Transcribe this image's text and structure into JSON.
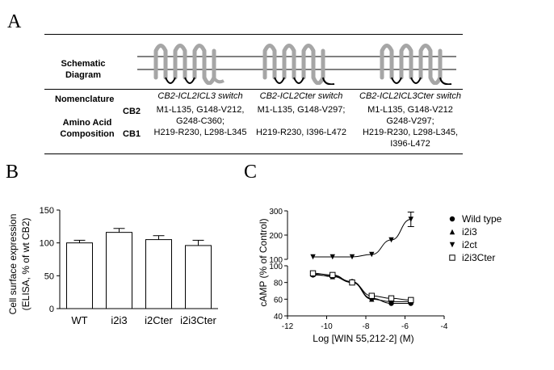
{
  "panels": {
    "a": "A",
    "b": "B",
    "c": "C"
  },
  "table": {
    "row_schematic": "Schematic\nDiagram",
    "row_nomenclature": "Nomenclature",
    "row_amino": "Amino Acid\nComposition",
    "sub_cb2": "CB2",
    "sub_cb1": "CB1",
    "columns": [
      {
        "name": "CB2-ICL2ICL3 switch",
        "cb2": "M1-L135, G148-V212,\nG248-C360;",
        "cb1": "H219-R230, L298-L345",
        "tail": "none"
      },
      {
        "name": "CB2-ICL2Cter switch",
        "cb2": "M1-L135, G148-V297;",
        "cb1": "H219-R230, I396-L472",
        "tail": "hook"
      },
      {
        "name": "CB2-ICL2ICL3Cter switch",
        "cb2": "M1-L135, G148-V212\nG248-V297;",
        "cb1": "H219-R230, L298-L345,\nI396-L472",
        "tail": "hook"
      }
    ],
    "colors": {
      "helix": "#a6a6a6",
      "loop": "#000000"
    }
  },
  "chart_data": [
    {
      "type": "bar",
      "ylabel": "Cell surface expression\n(ELISA, % of wt CB2)",
      "categories": [
        "WT",
        "i2i3",
        "i2Cter",
        "i2i3Cter"
      ],
      "values": [
        100,
        116,
        105,
        96
      ],
      "errors": [
        4,
        6,
        6,
        8
      ],
      "ylim": [
        0,
        150
      ],
      "yticks": [
        "0",
        "50",
        "100",
        "150"
      ],
      "bar_fill": "#ffffff",
      "bar_edge": "#000000"
    },
    {
      "type": "scatter",
      "xlabel": "Log [WIN 55,212-2] (M)",
      "ylabel": "cAMP (% of Control)",
      "xlim": [
        -12,
        -4
      ],
      "xticks": [
        "-12",
        "-10",
        "-8",
        "-6",
        "-4"
      ],
      "y_axis_broken": true,
      "ylim_lower": [
        40,
        100
      ],
      "ylim_upper": [
        100,
        300
      ],
      "yticks_lower": [
        "40",
        "60",
        "80",
        "100"
      ],
      "yticks_upper": [
        "100",
        "200",
        "300"
      ],
      "legend_position": "right",
      "series": [
        {
          "name": "Wild type",
          "marker": "circle-filled",
          "x": [
            -10.7,
            -9.7,
            -8.7,
            -7.7,
            -6.7,
            -5.7
          ],
          "y": [
            89,
            88,
            81,
            61,
            55,
            55
          ]
        },
        {
          "name": "i2i3",
          "marker": "triangle-up-filled",
          "x": [
            -10.7,
            -9.7,
            -8.7,
            -7.7,
            -6.7,
            -5.7
          ],
          "y": [
            90,
            87,
            80,
            60,
            57,
            57
          ]
        },
        {
          "name": "i2ct",
          "marker": "triangle-down-filled",
          "x": [
            -10.7,
            -9.7,
            -8.7,
            -7.7,
            -6.7,
            -5.7
          ],
          "y": [
            110,
            110,
            110,
            120,
            180,
            265
          ]
        },
        {
          "name": "i2i3Cter",
          "marker": "square-open",
          "x": [
            -10.7,
            -9.7,
            -8.7,
            -7.7,
            -6.7,
            -5.7
          ],
          "y": [
            91,
            89,
            80,
            64,
            61,
            59
          ]
        }
      ]
    }
  ]
}
